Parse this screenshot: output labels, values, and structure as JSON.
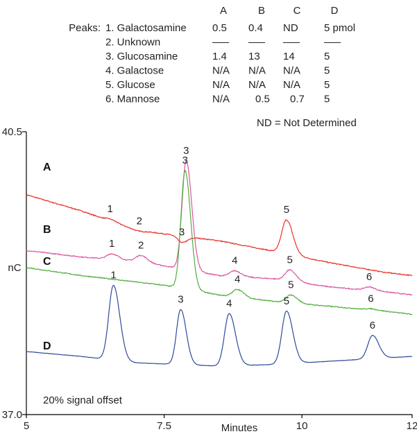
{
  "peak_table": {
    "peaks_label": "Peaks:",
    "columns": [
      "A",
      "B",
      "C",
      "D"
    ],
    "rows": [
      {
        "name": "1. Galactosamine",
        "values": [
          "0.5",
          "0.4",
          "ND",
          "5 pmol"
        ]
      },
      {
        "name": "2. Unknown",
        "values": [
          "—",
          "—",
          "—",
          "—"
        ]
      },
      {
        "name": "3. Glucosamine",
        "values": [
          "1.4",
          "13",
          "14",
          "5"
        ]
      },
      {
        "name": "4. Galactose",
        "values": [
          "N/A",
          "N/A",
          "N/A",
          "5"
        ]
      },
      {
        "name": "5. Glucose",
        "values": [
          "N/A",
          "N/A",
          "N/A",
          "5"
        ]
      },
      {
        "name": "6. Mannose",
        "values": [
          "N/A",
          "0.5",
          "0.7",
          "5"
        ]
      }
    ],
    "footnote": "ND = Not Determined"
  },
  "chart_data": {
    "type": "line",
    "xlabel": "Minutes",
    "ylabel": "nC",
    "xlim": [
      5,
      12
    ],
    "ylim": [
      37.0,
      40.5
    ],
    "x_ticks": [
      "5",
      "7.5",
      "10",
      "12"
    ],
    "y_ticks": [
      "40.5",
      "37.0"
    ],
    "annotation": "20% signal offset",
    "colors": {
      "A": "#e8302a",
      "B": "#d9559e",
      "C": "#4fae3c",
      "D": "#2c4a9a"
    },
    "series": [
      {
        "name": "A",
        "baseline": [
          [
            5.0,
            39.72
          ],
          [
            6.0,
            39.52
          ],
          [
            7.0,
            39.28
          ],
          [
            8.5,
            39.15
          ],
          [
            9.5,
            39.02
          ],
          [
            10.5,
            38.88
          ],
          [
            11.5,
            38.76
          ],
          [
            12.0,
            38.72
          ]
        ],
        "peaks": [
          {
            "label": "1",
            "x": 6.52,
            "y": 39.42
          },
          {
            "label": "2",
            "x": 7.05,
            "y": 39.27
          },
          {
            "label": "3",
            "x": 7.82,
            "y": 39.13
          },
          {
            "label": "5",
            "x": 9.72,
            "y": 39.41
          }
        ]
      },
      {
        "name": "B",
        "baseline": [
          [
            5.0,
            39.03
          ],
          [
            6.0,
            38.95
          ],
          [
            7.0,
            38.9
          ],
          [
            8.5,
            38.72
          ],
          [
            9.5,
            38.68
          ],
          [
            10.5,
            38.58
          ],
          [
            11.5,
            38.52
          ],
          [
            12.0,
            38.48
          ]
        ],
        "peaks": [
          {
            "label": "1",
            "x": 6.55,
            "y": 38.99
          },
          {
            "label": "2",
            "x": 7.08,
            "y": 38.97
          },
          {
            "label": "3",
            "x": 7.9,
            "y": 40.14
          },
          {
            "label": "4",
            "x": 8.78,
            "y": 38.78
          },
          {
            "label": "5",
            "x": 9.78,
            "y": 38.79
          },
          {
            "label": "6",
            "x": 11.22,
            "y": 38.58
          }
        ]
      },
      {
        "name": "C",
        "baseline": [
          [
            5.0,
            38.82
          ],
          [
            6.0,
            38.72
          ],
          [
            7.0,
            38.64
          ],
          [
            7.5,
            38.6
          ],
          [
            8.5,
            38.48
          ],
          [
            9.5,
            38.4
          ],
          [
            10.5,
            38.34
          ],
          [
            11.5,
            38.28
          ],
          [
            12.0,
            38.24
          ]
        ],
        "peaks": [
          {
            "label": "3",
            "x": 7.88,
            "y": 40.02
          },
          {
            "label": "4",
            "x": 8.83,
            "y": 38.55
          },
          {
            "label": "5",
            "x": 9.8,
            "y": 38.48
          },
          {
            "label": "6",
            "x": 11.25,
            "y": 38.31
          }
        ]
      },
      {
        "name": "D",
        "baseline": [
          [
            5.0,
            37.78
          ],
          [
            6.0,
            37.72
          ],
          [
            7.0,
            37.64
          ],
          [
            8.5,
            37.6
          ],
          [
            9.5,
            37.62
          ],
          [
            10.5,
            37.66
          ],
          [
            11.5,
            37.7
          ],
          [
            12.0,
            37.72
          ]
        ],
        "peaks": [
          {
            "label": "1",
            "x": 6.58,
            "y": 38.6
          },
          {
            "label": "3",
            "x": 7.8,
            "y": 38.3
          },
          {
            "label": "4",
            "x": 8.68,
            "y": 38.25
          },
          {
            "label": "5",
            "x": 9.72,
            "y": 38.28
          },
          {
            "label": "6",
            "x": 11.28,
            "y": 37.98
          }
        ]
      }
    ]
  }
}
